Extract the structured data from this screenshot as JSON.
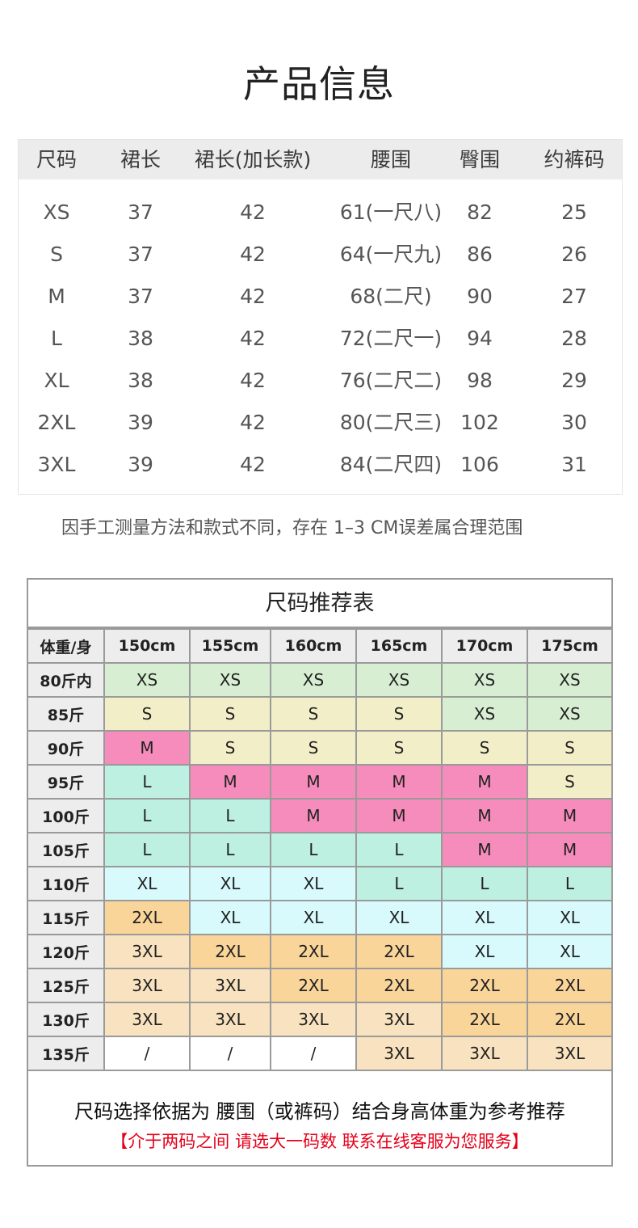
{
  "title": "产品信息",
  "size_table": {
    "headers": [
      "尺码",
      "裙长",
      "裙长(加长款)",
      "腰围",
      "臀围",
      "约裤码"
    ],
    "rows": [
      [
        "XS",
        "37",
        "42",
        "61(一尺八)",
        "82",
        "25"
      ],
      [
        "S",
        "37",
        "42",
        "64(一尺九)",
        "86",
        "26"
      ],
      [
        "M",
        "37",
        "42",
        "68(二尺)",
        "90",
        "27"
      ],
      [
        "L",
        "38",
        "42",
        "72(二尺一)",
        "94",
        "28"
      ],
      [
        "XL",
        "38",
        "42",
        "76(二尺二)",
        "98",
        "29"
      ],
      [
        "2XL",
        "39",
        "42",
        "80(二尺三)",
        "102",
        "30"
      ],
      [
        "3XL",
        "39",
        "42",
        "84(二尺四)",
        "106",
        "31"
      ]
    ]
  },
  "note": "因手工测量方法和款式不同，存在 1–3 CM误差属合理范围",
  "recommend": {
    "title": "尺码推荐表",
    "corner": "体重/身",
    "heights": [
      "150cm",
      "155cm",
      "160cm",
      "165cm",
      "170cm",
      "175cm"
    ],
    "rows": [
      {
        "weight": "80斤内",
        "sizes": [
          "XS",
          "XS",
          "XS",
          "XS",
          "XS",
          "XS"
        ]
      },
      {
        "weight": "85斤",
        "sizes": [
          "S",
          "S",
          "S",
          "S",
          "XS",
          "XS"
        ]
      },
      {
        "weight": "90斤",
        "sizes": [
          "M",
          "S",
          "S",
          "S",
          "S",
          "S"
        ]
      },
      {
        "weight": "95斤",
        "sizes": [
          "L",
          "M",
          "M",
          "M",
          "M",
          "S"
        ]
      },
      {
        "weight": "100斤",
        "sizes": [
          "L",
          "L",
          "M",
          "M",
          "M",
          "M"
        ]
      },
      {
        "weight": "105斤",
        "sizes": [
          "L",
          "L",
          "L",
          "L",
          "M",
          "M"
        ]
      },
      {
        "weight": "110斤",
        "sizes": [
          "XL",
          "XL",
          "XL",
          "L",
          "L",
          "L"
        ]
      },
      {
        "weight": "115斤",
        "sizes": [
          "2XL",
          "XL",
          "XL",
          "XL",
          "XL",
          "XL"
        ]
      },
      {
        "weight": "120斤",
        "sizes": [
          "3XL",
          "2XL",
          "2XL",
          "2XL",
          "XL",
          "XL"
        ]
      },
      {
        "weight": "125斤",
        "sizes": [
          "3XL",
          "3XL",
          "2XL",
          "2XL",
          "2XL",
          "2XL"
        ]
      },
      {
        "weight": "130斤",
        "sizes": [
          "3XL",
          "3XL",
          "3XL",
          "3XL",
          "2XL",
          "2XL"
        ]
      },
      {
        "weight": "135斤",
        "sizes": [
          "/",
          "/",
          "/",
          "3XL",
          "3XL",
          "3XL"
        ]
      }
    ],
    "size_colors": {
      "XS": "#d8eed2",
      "S": "#f2efc8",
      "M": "#f68cbb",
      "L": "#bdf0e0",
      "XL": "#d8fafc",
      "2XL": "#fad59a",
      "3XL": "#f9e2bf",
      "/": "#ffffff"
    },
    "footer_line1": "尺码选择依据为 腰围（或裤码）结合身高体重为参考推荐",
    "footer_line2": "【介于两码之间 请选大一码数 联系在线客服为您服务】"
  }
}
